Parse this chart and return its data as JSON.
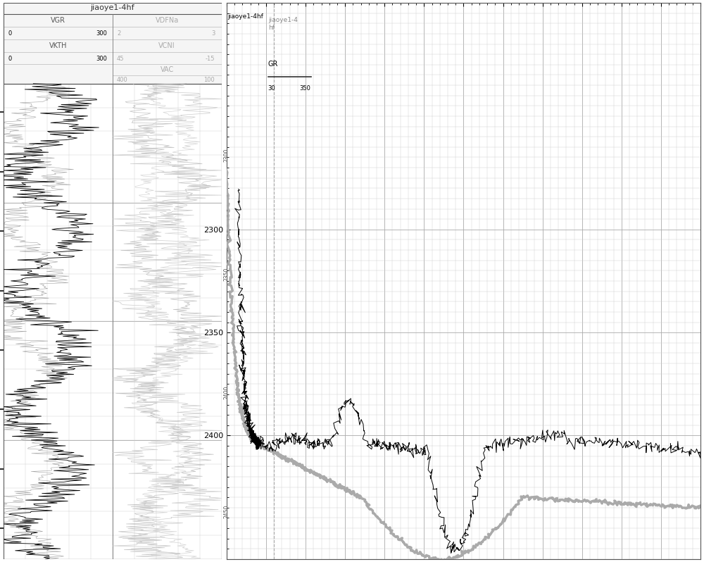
{
  "left_panel": {
    "title": "jiaoye1-4hf",
    "depth_min": 2270,
    "depth_max": 2470,
    "header_rows": [
      {
        "label_left": "VGR",
        "label_right": "VDFNa",
        "row": 0
      },
      {
        "scale_left_min": "0",
        "scale_left_max": "300",
        "scale_right_min": "2",
        "scale_right_max": "3",
        "row": 1
      },
      {
        "label_left": "VKTH",
        "label_right": "VCNI",
        "row": 2
      },
      {
        "scale_left_min": "0",
        "scale_left_max": "300",
        "scale_right_min": "45",
        "scale_right_max": "-15",
        "row": 3
      },
      {
        "label_right": "VAC",
        "row": 4
      },
      {
        "scale_right_min": "400",
        "scale_right_max": "100",
        "row": 5
      }
    ]
  },
  "right_panel": {
    "x_min": 400,
    "x_max": 1600,
    "x_ticks": [
      400,
      500,
      600,
      700,
      800,
      900,
      1000,
      1100,
      1200,
      1300,
      1400,
      1500,
      1600
    ],
    "y_min": 2270,
    "y_max": 2460,
    "y_ticks": [
      2300,
      2350,
      2400
    ],
    "legend1_label": "jiaoye1-4hf",
    "legend2_label": "jiaoye1-4\nhf",
    "legend_gr_label": "GR",
    "legend_gr_min": "30",
    "legend_gr_max": "350",
    "dashed_vline_x": 520,
    "curve_gray_color": "#aaaaaa",
    "curve_black_color": "#000000",
    "grid_minor_color": "#cccccc",
    "grid_major_color": "#aaaaaa",
    "background_color": "#ffffff"
  }
}
